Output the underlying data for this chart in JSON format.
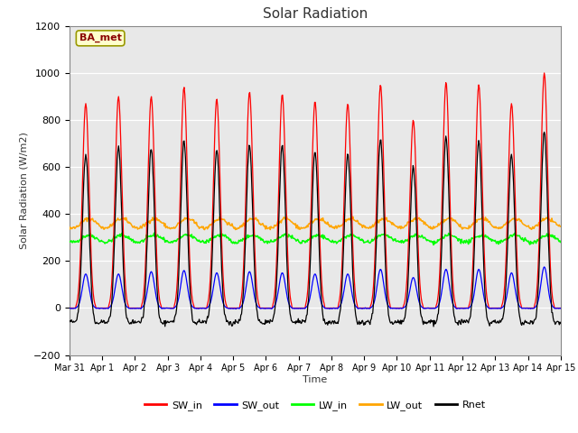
{
  "title": "Solar Radiation",
  "xlabel": "Time",
  "ylabel": "Solar Radiation (W/m2)",
  "ylim": [
    -200,
    1200
  ],
  "yticks": [
    -200,
    0,
    200,
    400,
    600,
    800,
    1000,
    1200
  ],
  "x_labels": [
    "Mar 31",
    "Apr 1",
    "Apr 2",
    "Apr 3",
    "Apr 4",
    "Apr 5",
    "Apr 6",
    "Apr 7",
    "Apr 8",
    "Apr 9",
    "Apr 10",
    "Apr 11",
    "Apr 12",
    "Apr 13",
    "Apr 14",
    "Apr 15"
  ],
  "annotation_text": "BA_met",
  "annotation_bg": "#FFFFCC",
  "annotation_border": "#999900",
  "legend_labels": [
    "SW_in",
    "SW_out",
    "LW_in",
    "LW_out",
    "Rnet"
  ],
  "legend_colors": [
    "red",
    "blue",
    "#00FF00",
    "orange",
    "black"
  ],
  "line_colors": {
    "SW_in": "red",
    "SW_out": "blue",
    "LW_in": "#00FF00",
    "LW_out": "orange",
    "Rnet": "black"
  },
  "fig_bg": "#FFFFFF",
  "plot_bg": "#E8E8E8",
  "n_days": 15,
  "hours_per_day": 24,
  "dt_hours": 0.5,
  "peak_SW": [
    870,
    900,
    900,
    940,
    890,
    920,
    910,
    880,
    870,
    950,
    800,
    960,
    950,
    870,
    1000
  ],
  "peak_SW_out": [
    145,
    145,
    155,
    160,
    150,
    155,
    150,
    145,
    145,
    165,
    130,
    165,
    165,
    150,
    175
  ]
}
